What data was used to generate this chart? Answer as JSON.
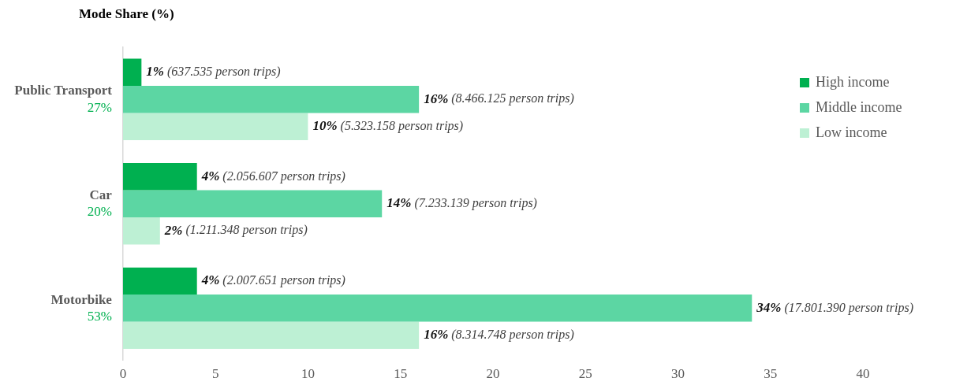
{
  "chart_data": {
    "type": "bar",
    "orientation": "horizontal",
    "title": "Mode Share (%)",
    "categories": [
      "Public Transport",
      "Car",
      "Motorbike"
    ],
    "totals": [
      "27%",
      "20%",
      "53%"
    ],
    "series": [
      {
        "name": "High income",
        "color": "#00b050",
        "values": [
          1,
          4,
          4
        ],
        "value_labels": [
          "1% (637.535 person trips)",
          "4% (2.056.607 person trips)",
          "4% (2.007.651 person trips)"
        ]
      },
      {
        "name": "Middle income",
        "color": "#5cd6a3",
        "values": [
          16,
          14,
          34
        ],
        "value_labels": [
          "16% (8.466.125 person trips)",
          "14% (7.233.139 person trips)",
          "34% (17.801.390 person trips)"
        ]
      },
      {
        "name": "Low income",
        "color": "#bdf0d4",
        "values": [
          10,
          2,
          16
        ],
        "value_labels": [
          "10% (5.323.158 person trips)",
          "2% (1.211.348 person trips)",
          "16% (8.314.748 person trips)"
        ]
      }
    ],
    "xlim": [
      0,
      40
    ],
    "xticks": [
      0,
      5,
      10,
      15,
      20,
      25,
      30,
      35,
      40
    ],
    "legend": "top right",
    "grid": false
  }
}
